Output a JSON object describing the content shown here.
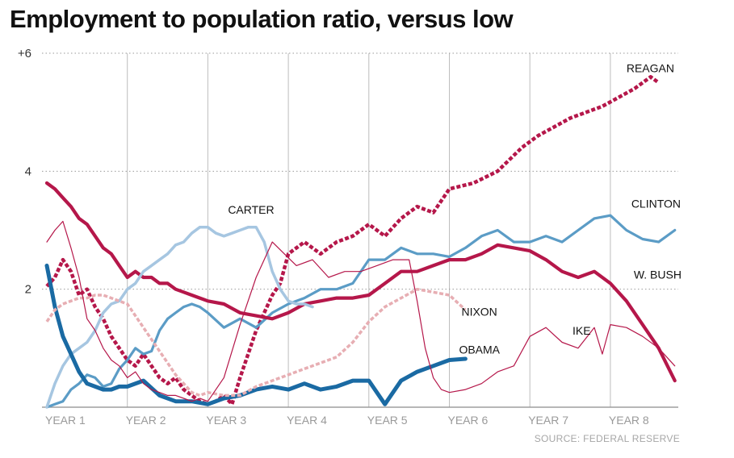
{
  "chart_data": {
    "type": "line",
    "title": "Employment to population ratio, versus low",
    "source": "SOURCE: FEDERAL RESERVE",
    "xlabel": "",
    "ylabel": "",
    "x_unit": "year of presidency",
    "x_tick_labels": [
      "YEAR 1",
      "YEAR 2",
      "YEAR 3",
      "YEAR 4",
      "YEAR 5",
      "YEAR 6",
      "YEAR 7",
      "YEAR 8"
    ],
    "x_tick_values": [
      1,
      2,
      3,
      4,
      5,
      6,
      7,
      8
    ],
    "y_tick_labels": [
      "+6",
      "4",
      "2"
    ],
    "y_tick_values": [
      6,
      4,
      2
    ],
    "xlim": [
      1,
      8.8
    ],
    "ylim": [
      0,
      6
    ],
    "grid": "vertical solid at each year, horizontal dotted at 2, 4, 6",
    "series": [
      {
        "name": "REAGAN",
        "color": "#b5174a",
        "style": "dotted",
        "width": 4.5,
        "label_x": 8.2,
        "label_y": 5.75,
        "x": [
          1.0,
          1.1,
          1.2,
          1.3,
          1.4,
          1.5,
          1.6,
          1.7,
          1.8,
          1.9,
          2.0,
          2.1,
          2.2,
          2.3,
          2.4,
          2.5,
          2.6,
          2.7,
          2.8,
          2.9,
          3.0,
          3.1,
          3.2,
          3.3,
          3.4,
          3.5,
          3.6,
          3.7,
          3.8,
          3.9,
          4.0,
          4.2,
          4.4,
          4.6,
          4.8,
          5.0,
          5.2,
          5.4,
          5.6,
          5.8,
          6.0,
          6.3,
          6.6,
          6.9,
          7.1,
          7.3,
          7.5,
          7.7,
          7.9,
          8.1,
          8.3,
          8.5,
          8.6
        ],
        "y": [
          2.05,
          2.2,
          2.5,
          2.3,
          1.9,
          2.0,
          1.7,
          1.5,
          1.2,
          1.0,
          0.8,
          0.7,
          0.9,
          0.7,
          0.5,
          0.4,
          0.5,
          0.3,
          0.2,
          0.1,
          0.05,
          0.1,
          0.2,
          0.05,
          0.5,
          0.9,
          1.3,
          1.6,
          1.9,
          2.1,
          2.6,
          2.8,
          2.6,
          2.8,
          2.9,
          3.1,
          2.9,
          3.2,
          3.4,
          3.3,
          3.7,
          3.8,
          4.0,
          4.4,
          4.6,
          4.75,
          4.9,
          5.0,
          5.1,
          5.25,
          5.4,
          5.6,
          5.5
        ]
      },
      {
        "name": "CLINTON",
        "color": "#5b9cc6",
        "style": "solid",
        "width": 3.2,
        "label_x": 8.26,
        "label_y": 3.45,
        "x": [
          1.0,
          1.1,
          1.2,
          1.3,
          1.4,
          1.5,
          1.6,
          1.7,
          1.8,
          1.9,
          2.0,
          2.1,
          2.2,
          2.3,
          2.4,
          2.5,
          2.6,
          2.7,
          2.8,
          2.9,
          3.0,
          3.2,
          3.4,
          3.6,
          3.8,
          4.0,
          4.2,
          4.4,
          4.6,
          4.8,
          5.0,
          5.2,
          5.4,
          5.6,
          5.8,
          6.0,
          6.2,
          6.4,
          6.6,
          6.8,
          7.0,
          7.2,
          7.4,
          7.6,
          7.8,
          8.0,
          8.2,
          8.4,
          8.6,
          8.8
        ],
        "y": [
          0.0,
          0.05,
          0.1,
          0.3,
          0.4,
          0.55,
          0.5,
          0.35,
          0.4,
          0.65,
          0.8,
          1.0,
          0.9,
          0.95,
          1.3,
          1.5,
          1.6,
          1.7,
          1.75,
          1.7,
          1.6,
          1.35,
          1.5,
          1.35,
          1.6,
          1.75,
          1.85,
          2.0,
          2.0,
          2.1,
          2.5,
          2.5,
          2.7,
          2.6,
          2.6,
          2.55,
          2.7,
          2.9,
          3.0,
          2.8,
          2.8,
          2.9,
          2.8,
          3.0,
          3.2,
          3.25,
          3.0,
          2.85,
          2.8,
          3.0
        ]
      },
      {
        "name": "W. BUSH",
        "color": "#b5174a",
        "style": "solid",
        "width": 4.2,
        "label_x": 8.29,
        "label_y": 2.25,
        "x": [
          1.0,
          1.1,
          1.2,
          1.3,
          1.4,
          1.5,
          1.6,
          1.7,
          1.8,
          1.9,
          2.0,
          2.1,
          2.2,
          2.3,
          2.4,
          2.5,
          2.6,
          2.7,
          2.8,
          2.9,
          3.0,
          3.2,
          3.4,
          3.6,
          3.8,
          4.0,
          4.2,
          4.4,
          4.6,
          4.8,
          5.0,
          5.2,
          5.4,
          5.6,
          5.8,
          6.0,
          6.2,
          6.4,
          6.6,
          6.8,
          7.0,
          7.2,
          7.4,
          7.6,
          7.8,
          8.0,
          8.2,
          8.4,
          8.6,
          8.8
        ],
        "y": [
          3.8,
          3.7,
          3.55,
          3.4,
          3.2,
          3.1,
          2.9,
          2.7,
          2.6,
          2.4,
          2.2,
          2.3,
          2.2,
          2.2,
          2.1,
          2.1,
          2.0,
          1.95,
          1.9,
          1.85,
          1.8,
          1.75,
          1.6,
          1.55,
          1.5,
          1.6,
          1.75,
          1.8,
          1.85,
          1.85,
          1.9,
          2.1,
          2.3,
          2.3,
          2.4,
          2.5,
          2.5,
          2.6,
          2.75,
          2.7,
          2.65,
          2.5,
          2.3,
          2.2,
          2.3,
          2.1,
          1.8,
          1.4,
          1.0,
          0.45
        ]
      },
      {
        "name": "CARTER",
        "color": "#a6c6e1",
        "style": "solid",
        "width": 3.5,
        "label_x": 3.25,
        "label_y": 3.35,
        "x": [
          1.0,
          1.1,
          1.2,
          1.3,
          1.4,
          1.5,
          1.6,
          1.7,
          1.8,
          1.9,
          2.0,
          2.1,
          2.2,
          2.3,
          2.4,
          2.5,
          2.6,
          2.7,
          2.8,
          2.9,
          3.0,
          3.1,
          3.2,
          3.3,
          3.4,
          3.5,
          3.6,
          3.7,
          3.8,
          3.9,
          4.0,
          4.1,
          4.2,
          4.3
        ],
        "y": [
          0.0,
          0.4,
          0.7,
          0.9,
          1.0,
          1.1,
          1.3,
          1.6,
          1.75,
          1.8,
          2.0,
          2.1,
          2.3,
          2.4,
          2.5,
          2.6,
          2.75,
          2.8,
          2.95,
          3.05,
          3.05,
          2.95,
          2.9,
          2.95,
          3.0,
          3.05,
          3.05,
          2.8,
          2.3,
          2.0,
          1.8,
          1.75,
          1.75,
          1.7
        ]
      },
      {
        "name": "OBAMA",
        "color": "#1a6aa3",
        "style": "solid",
        "width": 5.0,
        "label_x": 6.12,
        "label_y": 0.98,
        "x": [
          1.0,
          1.1,
          1.2,
          1.3,
          1.4,
          1.5,
          1.6,
          1.7,
          1.8,
          1.9,
          2.0,
          2.2,
          2.4,
          2.6,
          2.8,
          3.0,
          3.2,
          3.4,
          3.6,
          3.8,
          4.0,
          4.2,
          4.4,
          4.6,
          4.8,
          5.0,
          5.2,
          5.4,
          5.6,
          5.8,
          6.0,
          6.2
        ],
        "y": [
          2.4,
          1.7,
          1.2,
          0.9,
          0.6,
          0.4,
          0.35,
          0.3,
          0.3,
          0.35,
          0.35,
          0.45,
          0.2,
          0.1,
          0.1,
          0.05,
          0.15,
          0.2,
          0.3,
          0.35,
          0.3,
          0.4,
          0.3,
          0.35,
          0.45,
          0.45,
          0.05,
          0.45,
          0.6,
          0.7,
          0.8,
          0.82
        ]
      },
      {
        "name": "NIXON",
        "color": "#e7aeb3",
        "style": "dotted",
        "width": 3.5,
        "label_x": 6.15,
        "label_y": 1.62,
        "x": [
          1.0,
          1.1,
          1.2,
          1.3,
          1.4,
          1.5,
          1.6,
          1.7,
          1.8,
          1.9,
          2.0,
          2.1,
          2.2,
          2.3,
          2.4,
          2.5,
          2.6,
          2.7,
          2.8,
          2.9,
          3.0,
          3.2,
          3.4,
          3.6,
          3.8,
          4.0,
          4.2,
          4.4,
          4.6,
          4.8,
          5.0,
          5.2,
          5.4,
          5.6,
          5.8,
          6.0,
          6.2
        ],
        "y": [
          1.45,
          1.65,
          1.75,
          1.8,
          1.85,
          1.85,
          1.9,
          1.9,
          1.85,
          1.8,
          1.75,
          1.55,
          1.35,
          1.15,
          0.95,
          0.75,
          0.55,
          0.4,
          0.25,
          0.2,
          0.25,
          0.2,
          0.2,
          0.35,
          0.45,
          0.55,
          0.65,
          0.75,
          0.85,
          1.1,
          1.45,
          1.7,
          1.85,
          2.0,
          1.95,
          1.9,
          1.65
        ]
      },
      {
        "name": "IKE",
        "color": "#b5174a",
        "style": "solid",
        "width": 1.2,
        "label_x": 7.53,
        "label_y": 1.3,
        "x": [
          1.0,
          1.1,
          1.2,
          1.3,
          1.4,
          1.5,
          1.6,
          1.7,
          1.8,
          1.9,
          2.0,
          2.1,
          2.2,
          2.3,
          2.4,
          2.5,
          2.6,
          2.7,
          2.8,
          2.9,
          3.0,
          3.2,
          3.4,
          3.6,
          3.8,
          3.95,
          4.1,
          4.3,
          4.5,
          4.7,
          4.9,
          5.1,
          5.3,
          5.5,
          5.6,
          5.7,
          5.8,
          5.9,
          6.0,
          6.2,
          6.4,
          6.6,
          6.8,
          7.0,
          7.2,
          7.4,
          7.6,
          7.8,
          7.9,
          8.0,
          8.2,
          8.4,
          8.6,
          8.8
        ],
        "y": [
          2.8,
          3.0,
          3.15,
          2.7,
          2.2,
          1.5,
          1.3,
          1.0,
          0.8,
          0.7,
          0.5,
          0.6,
          0.4,
          0.3,
          0.25,
          0.2,
          0.2,
          0.15,
          0.1,
          0.15,
          0.1,
          0.5,
          1.4,
          2.2,
          2.8,
          2.6,
          2.4,
          2.5,
          2.2,
          2.3,
          2.3,
          2.4,
          2.5,
          2.5,
          1.8,
          1.0,
          0.5,
          0.3,
          0.25,
          0.3,
          0.4,
          0.6,
          0.7,
          1.2,
          1.35,
          1.1,
          1.0,
          1.35,
          0.9,
          1.4,
          1.35,
          1.2,
          1.0,
          0.7
        ]
      }
    ]
  }
}
